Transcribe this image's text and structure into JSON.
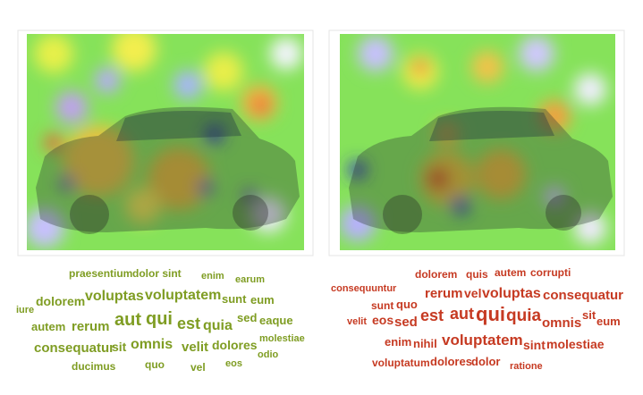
{
  "left_cloud": {
    "words": [
      "praesentium",
      "dolor sint",
      "enim",
      "earum",
      "dolorem",
      "voluptas",
      "voluptatem",
      "sunt",
      "eum",
      "iure",
      "autem",
      "rerum",
      "aut",
      "qui",
      "est",
      "quia",
      "sed",
      "eaque",
      "molestiae",
      "consequatur",
      "sit",
      "omnis",
      "velit",
      "dolores",
      "odio",
      "ducimus",
      "quo",
      "vel",
      "eos"
    ]
  },
  "right_cloud": {
    "words": [
      "dolorem",
      "quis",
      "autem",
      "corrupti",
      "consequuntur",
      "sunt",
      "quo",
      "rerum",
      "vel",
      "voluptas",
      "consequatur",
      "velit",
      "eos",
      "sed",
      "est",
      "aut",
      "qui",
      "quia",
      "omnis",
      "sit",
      "eum",
      "enim",
      "nihil",
      "voluptatem",
      "sint",
      "molestiae",
      "voluptatum",
      "dolores",
      "dolor",
      "ratione"
    ]
  }
}
